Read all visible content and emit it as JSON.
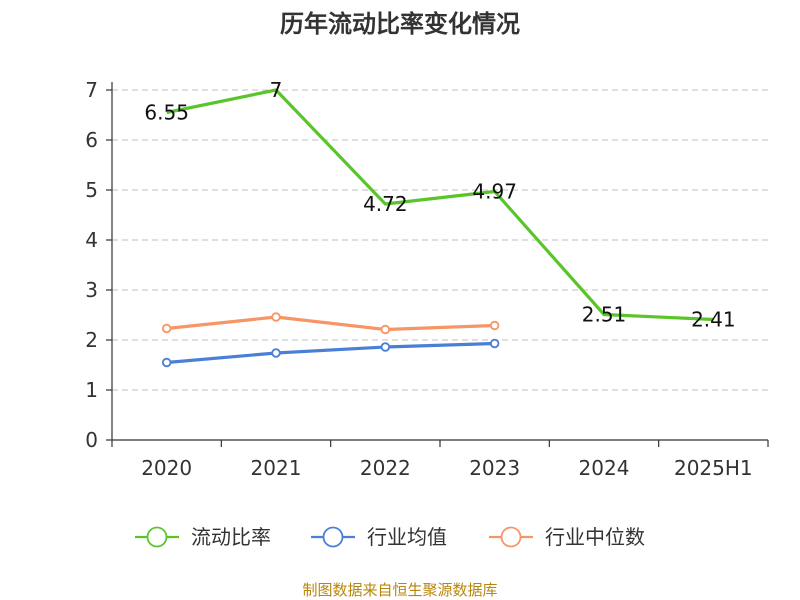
{
  "chart_data": {
    "type": "line",
    "title": "历年流动比率变化情况",
    "categories": [
      "2020",
      "2021",
      "2022",
      "2023",
      "2024",
      "2025H1"
    ],
    "ylim": [
      0,
      7
    ],
    "yticks": [
      "0",
      "1",
      "2",
      "3",
      "4",
      "5",
      "6",
      "7"
    ],
    "grid": true,
    "legend_position": "bottom",
    "series": [
      {
        "name": "流动比率",
        "color": "#5ac52a",
        "values": [
          6.55,
          7,
          4.72,
          4.97,
          2.51,
          2.41
        ],
        "labels": [
          "6.55",
          "7",
          "4.72",
          "4.97",
          "2.51",
          "2.41"
        ],
        "markers": false
      },
      {
        "name": "行业均值",
        "color": "#4a7fd8",
        "values": [
          1.55,
          1.74,
          1.86,
          1.93,
          null,
          null
        ],
        "markers": true
      },
      {
        "name": "行业中位数",
        "color": "#f79566",
        "values": [
          2.23,
          2.46,
          2.21,
          2.29,
          null,
          null
        ],
        "markers": true
      }
    ]
  },
  "source": "制图数据来自恒生聚源数据库"
}
